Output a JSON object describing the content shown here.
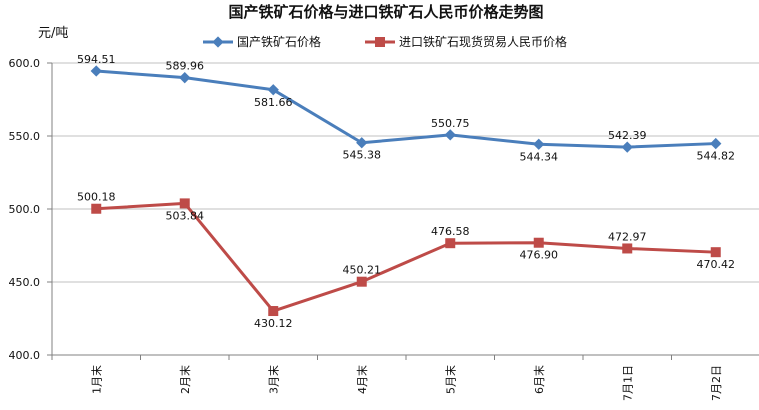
{
  "chart_data": {
    "type": "line",
    "title": "国产铁矿石价格与进口铁矿石人民币价格走势图",
    "ylabel": "元/吨",
    "xlabel": "",
    "categories": [
      "1月末",
      "2月末",
      "3月末",
      "4月末",
      "5月末",
      "6月末",
      "7月1日",
      "7月2日"
    ],
    "ylim": [
      400,
      600
    ],
    "yticks": [
      "400.0",
      "450.0",
      "500.0",
      "550.0",
      "600.0"
    ],
    "grid": true,
    "legend_position": "top",
    "series": [
      {
        "name": "国产铁矿石价格",
        "color": "#4a7ebb",
        "marker": "diamond",
        "values": [
          594.51,
          589.96,
          581.66,
          545.38,
          550.75,
          544.34,
          542.39,
          544.82
        ],
        "labels": [
          "594.51",
          "589.96",
          "581.66",
          "545.38",
          "550.75",
          "544.34",
          "542.39",
          "544.82"
        ]
      },
      {
        "name": "进口铁矿石现货贸易人民币价格",
        "color": "#be4b48",
        "marker": "square",
        "values": [
          500.18,
          503.84,
          430.12,
          450.21,
          476.58,
          476.9,
          472.97,
          470.42
        ],
        "labels": [
          "500.18",
          "503.84",
          "430.12",
          "450.21",
          "476.58",
          "476.90",
          "472.97",
          "470.42"
        ]
      }
    ]
  }
}
